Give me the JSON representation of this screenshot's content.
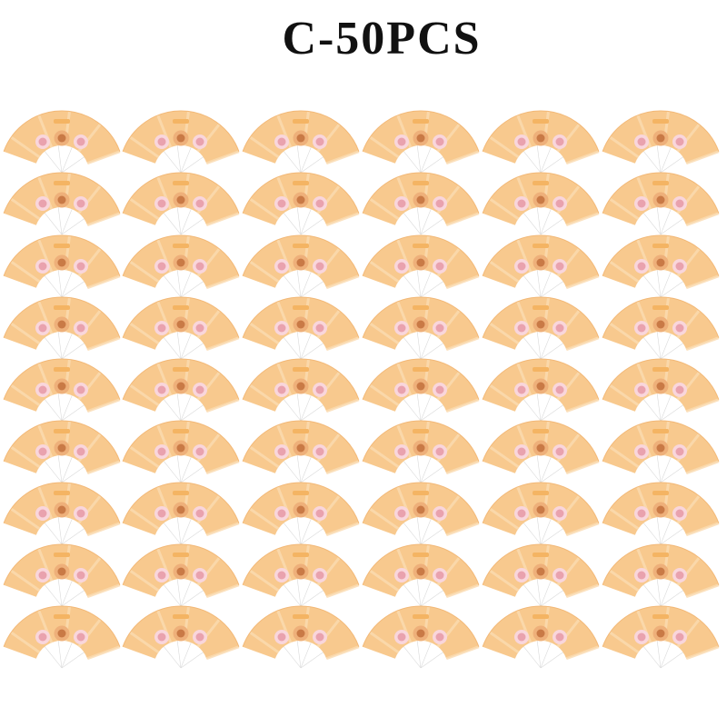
{
  "header": {
    "title": "C-50PCS"
  }
}
